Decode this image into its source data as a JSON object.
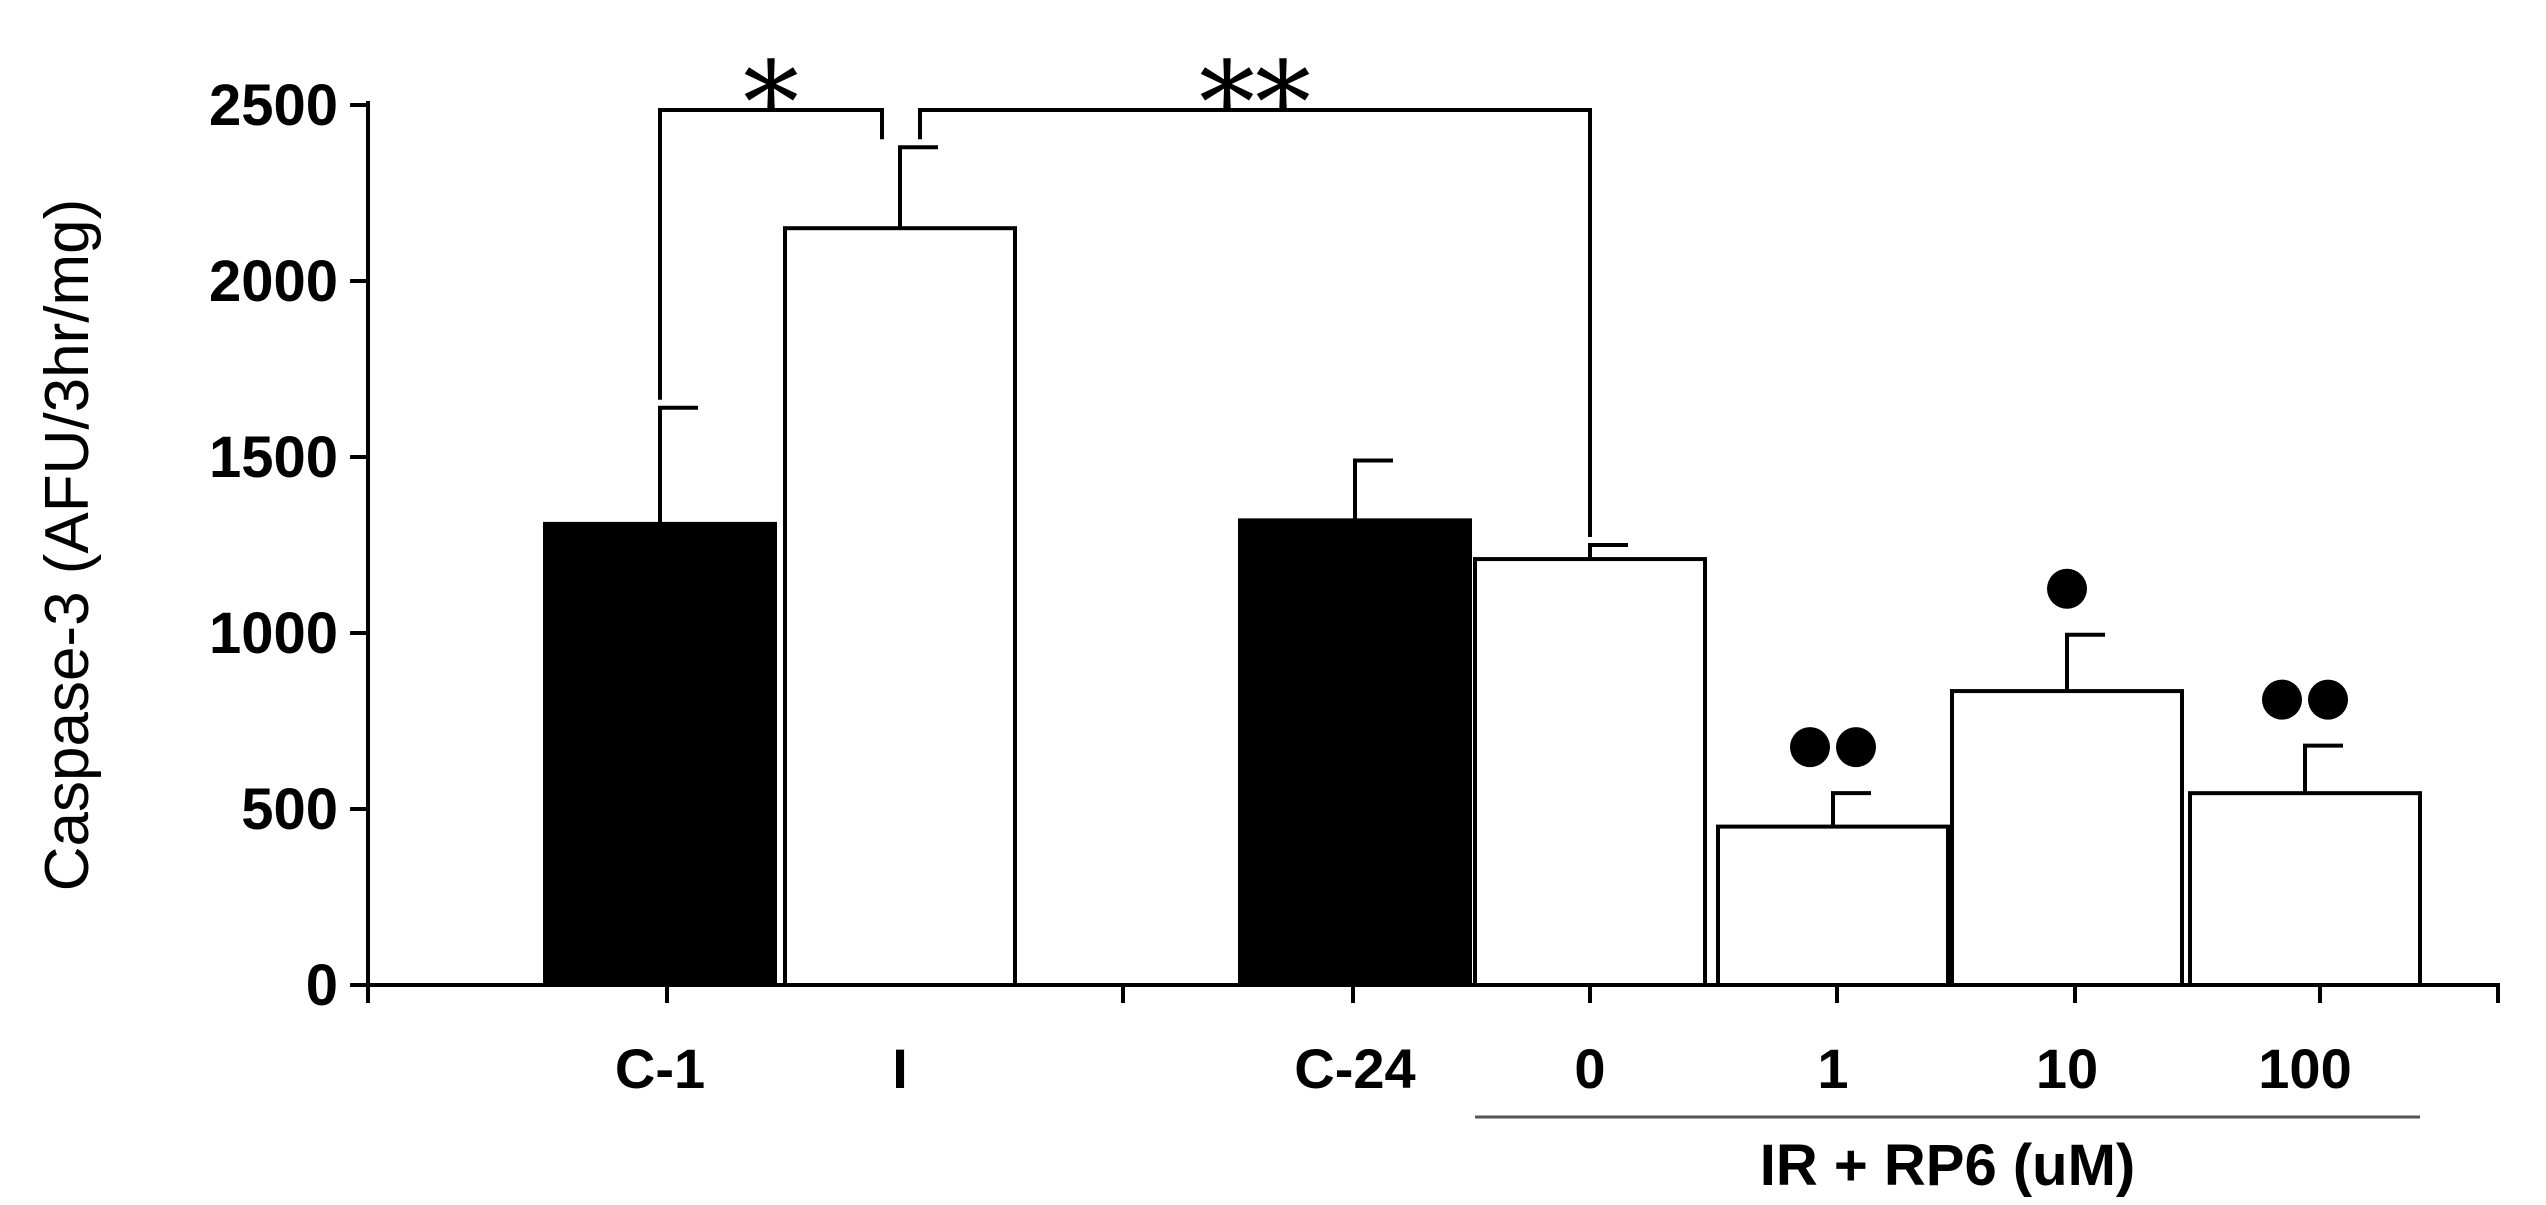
{
  "chart_data": {
    "type": "bar",
    "ylabel": "Caspase-3 (AFU/3hr/mg)",
    "xlabel": "",
    "ylim": [
      0,
      2500
    ],
    "yticks": [
      0,
      500,
      1000,
      1500,
      2000,
      2500
    ],
    "grid": false,
    "categories": [
      "C-1",
      "I",
      "C-24",
      "0",
      "1",
      "10",
      "100"
    ],
    "values": [
      1310,
      2150,
      1320,
      1210,
      450,
      835,
      545
    ],
    "errors": [
      330,
      230,
      170,
      40,
      95,
      160,
      135
    ],
    "fills": [
      "black",
      "white",
      "black",
      "white",
      "white",
      "white",
      "white"
    ],
    "group_label": "IR + RP6 (uM)",
    "group_members": [
      "0",
      "1",
      "10",
      "100"
    ],
    "significance": [
      {
        "between": [
          "C-1",
          "I"
        ],
        "label": "*"
      },
      {
        "between": [
          "I",
          "0"
        ],
        "label": "**"
      }
    ],
    "markers": [
      {
        "category": "1",
        "count": 2,
        "symbol": "●"
      },
      {
        "category": "10",
        "count": 1,
        "symbol": "●"
      },
      {
        "category": "100",
        "count": 2,
        "symbol": "●"
      }
    ]
  }
}
